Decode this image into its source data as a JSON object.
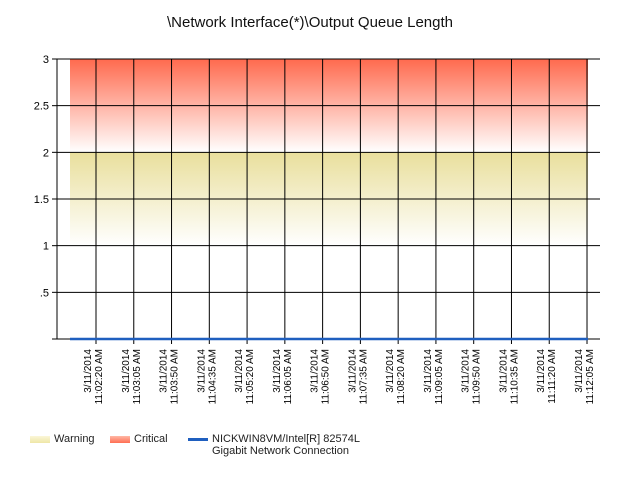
{
  "chart_data": {
    "type": "line",
    "title": "\\Network Interface(*)\\Output Queue Length",
    "xlabel": "",
    "ylabel": "",
    "ylim": [
      0,
      3
    ],
    "yticks": [
      {
        "value": 3,
        "label": "3"
      },
      {
        "value": 2.5,
        "label": "2.5"
      },
      {
        "value": 2,
        "label": "2"
      },
      {
        "value": 1.5,
        "label": "1.5"
      },
      {
        "value": 1,
        "label": "1"
      },
      {
        "value": 0.5,
        "label": ".5"
      },
      {
        "value": 0,
        "label": ""
      }
    ],
    "x": [
      {
        "date": "3/11/2014",
        "time": "11:02:20 AM"
      },
      {
        "date": "3/11/2014",
        "time": "11:03:05 AM"
      },
      {
        "date": "3/11/2014",
        "time": "11:03:50 AM"
      },
      {
        "date": "3/11/2014",
        "time": "11:04:35 AM"
      },
      {
        "date": "3/11/2014",
        "time": "11:05:20 AM"
      },
      {
        "date": "3/11/2014",
        "time": "11:06:05 AM"
      },
      {
        "date": "3/11/2014",
        "time": "11:06:50 AM"
      },
      {
        "date": "3/11/2014",
        "time": "11:07:35 AM"
      },
      {
        "date": "3/11/2014",
        "time": "11:08:20 AM"
      },
      {
        "date": "3/11/2014",
        "time": "11:09:05 AM"
      },
      {
        "date": "3/11/2014",
        "time": "11:09:50 AM"
      },
      {
        "date": "3/11/2014",
        "time": "11:10:35 AM"
      },
      {
        "date": "3/11/2014",
        "time": "11:11:20 AM"
      },
      {
        "date": "3/11/2014",
        "time": "11:12:05 AM"
      }
    ],
    "threshold_bands": [
      {
        "name": "Warning",
        "from": 1,
        "to": 2,
        "color": "#eee6a6"
      },
      {
        "name": "Critical",
        "from": 2,
        "to": 3,
        "color": "#ff6e52"
      }
    ],
    "series": [
      {
        "name": "NICKWIN8VM/Intel[R] 82574L Gigabit Network Connection",
        "name_lines": [
          "NICKWIN8VM/Intel[R] 82574L",
          "Gigabit Network Connection"
        ],
        "color": "#1f5fbf",
        "values": [
          0,
          0,
          0,
          0,
          0,
          0,
          0,
          0,
          0,
          0,
          0,
          0,
          0,
          0
        ]
      }
    ],
    "grid": true,
    "legend_position": "bottom-left"
  },
  "legend": {
    "warning_label": "Warning",
    "critical_label": "Critical",
    "series_line1": "NICKWIN8VM/Intel[R] 82574L",
    "series_line2": "Gigabit Network Connection"
  }
}
